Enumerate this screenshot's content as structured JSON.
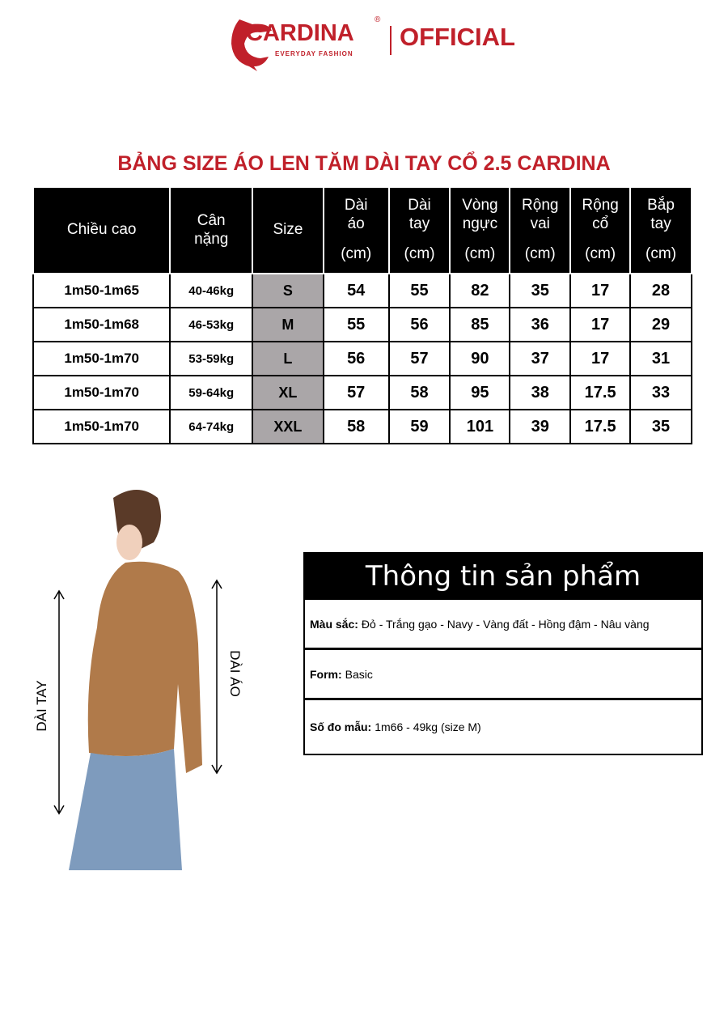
{
  "logo": {
    "brand": "CARDINA",
    "registered": "®",
    "tagline": "EVERYDAY FASHION",
    "official": "OFFICIAL"
  },
  "title": "BẢNG SIZE ÁO LEN TĂM DÀI TAY CỔ 2.5 CARDINA",
  "table": {
    "headers": [
      {
        "t": "Chiều cao",
        "u": ""
      },
      {
        "t": "Cân nặng",
        "u": ""
      },
      {
        "t": "Size",
        "u": ""
      },
      {
        "t": "Dài áo",
        "u": "(cm)"
      },
      {
        "t": "Dài tay",
        "u": "(cm)"
      },
      {
        "t": "Vòng ngực",
        "u": "(cm)"
      },
      {
        "t": "Rộng vai",
        "u": "(cm)"
      },
      {
        "t": "Rộng cổ",
        "u": "(cm)"
      },
      {
        "t": "Bắp tay",
        "u": "(cm)"
      }
    ],
    "rows": [
      [
        "1m50-1m65",
        "40-46kg",
        "S",
        "54",
        "55",
        "82",
        "35",
        "17",
        "28"
      ],
      [
        "1m50-1m68",
        "46-53kg",
        "M",
        "55",
        "56",
        "85",
        "36",
        "17",
        "29"
      ],
      [
        "1m50-1m70",
        "53-59kg",
        "L",
        "56",
        "57",
        "90",
        "37",
        "17",
        "31"
      ],
      [
        "1m50-1m70",
        "59-64kg",
        "XL",
        "57",
        "58",
        "95",
        "38",
        "17.5",
        "33"
      ],
      [
        "1m50-1m70",
        "64-74kg",
        "XXL",
        "58",
        "59",
        "101",
        "39",
        "17.5",
        "35"
      ]
    ]
  },
  "model": {
    "label_left": "DÀI TAY",
    "label_right": "DÀI ÁO"
  },
  "info": {
    "title": "Thông tin sản phẩm",
    "rows": [
      {
        "k": "Màu sắc:",
        "v": "Đỏ - Trắng gạo - Navy - Vàng đất - Hồng đậm - Nâu vàng"
      },
      {
        "k": "Form:",
        "v": "Basic"
      },
      {
        "k": "Số đo mẫu:",
        "v": "1m66 - 49kg (size M)"
      }
    ]
  },
  "colors": {
    "brand": "#c0202a",
    "size_cell": "#aaa6a8",
    "sweater": "#b07a4a"
  }
}
